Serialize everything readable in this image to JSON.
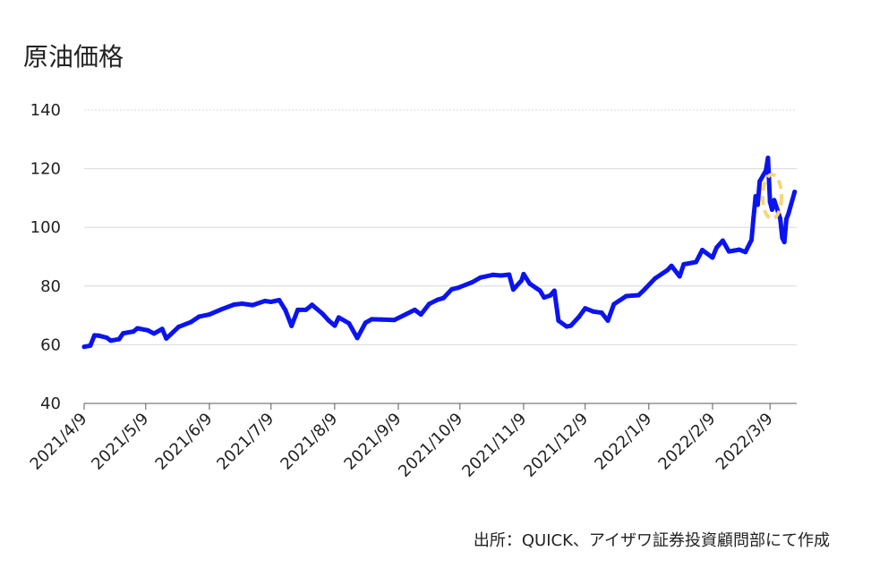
{
  "title": "原油価格",
  "source": "出所：QUICK、アイザワ証券投資顧問部にて作成",
  "colors": {
    "series": "#0a14f0",
    "highlight": "#f7d57a",
    "grid": "#d9d9d9",
    "axis": "#595959"
  },
  "chart_data": {
    "type": "line",
    "title": "原油価格",
    "xlabel": "",
    "ylabel": "",
    "ylim": [
      40,
      140
    ],
    "yticks": [
      40,
      60,
      80,
      100,
      120,
      140
    ],
    "xticks": [
      "2021/4/9",
      "2021/5/9",
      "2021/6/9",
      "2021/7/9",
      "2021/8/9",
      "2021/9/9",
      "2021/10/9",
      "2021/11/9",
      "2021/12/9",
      "2022/1/9",
      "2022/2/9",
      "2022/3/9"
    ],
    "grid": "horizontal",
    "series": [
      {
        "points": [
          [
            "2021/4/9",
            59.3
          ],
          [
            "2021/4/12",
            59.7
          ],
          [
            "2021/4/14",
            63.2
          ],
          [
            "2021/4/16",
            63.1
          ],
          [
            "2021/4/20",
            62.4
          ],
          [
            "2021/4/22",
            61.4
          ],
          [
            "2021/4/26",
            61.9
          ],
          [
            "2021/4/28",
            63.9
          ],
          [
            "2021/5/3",
            64.5
          ],
          [
            "2021/5/5",
            65.6
          ],
          [
            "2021/5/10",
            64.9
          ],
          [
            "2021/5/13",
            63.8
          ],
          [
            "2021/5/17",
            65.4
          ],
          [
            "2021/5/19",
            62.1
          ],
          [
            "2021/5/25",
            66.1
          ],
          [
            "2021/5/31",
            67.7
          ],
          [
            "2021/6/4",
            69.6
          ],
          [
            "2021/6/9",
            70.3
          ],
          [
            "2021/6/15",
            72.1
          ],
          [
            "2021/6/21",
            73.7
          ],
          [
            "2021/6/25",
            74.0
          ],
          [
            "2021/6/30",
            73.5
          ],
          [
            "2021/7/6",
            74.9
          ],
          [
            "2021/7/9",
            74.6
          ],
          [
            "2021/7/13",
            75.2
          ],
          [
            "2021/7/16",
            71.8
          ],
          [
            "2021/7/19",
            66.4
          ],
          [
            "2021/7/22",
            71.9
          ],
          [
            "2021/7/26",
            71.9
          ],
          [
            "2021/7/29",
            73.6
          ],
          [
            "2021/8/3",
            70.6
          ],
          [
            "2021/8/6",
            68.3
          ],
          [
            "2021/8/9",
            66.5
          ],
          [
            "2021/8/11",
            69.3
          ],
          [
            "2021/8/16",
            67.3
          ],
          [
            "2021/8/20",
            62.3
          ],
          [
            "2021/8/24",
            67.5
          ],
          [
            "2021/8/27",
            68.7
          ],
          [
            "2021/9/1",
            68.6
          ],
          [
            "2021/9/7",
            68.4
          ],
          [
            "2021/9/13",
            70.5
          ],
          [
            "2021/9/17",
            71.9
          ],
          [
            "2021/9/20",
            70.3
          ],
          [
            "2021/9/24",
            73.9
          ],
          [
            "2021/9/28",
            75.3
          ],
          [
            "2021/10/1",
            75.9
          ],
          [
            "2021/10/5",
            78.9
          ],
          [
            "2021/10/8",
            79.4
          ],
          [
            "2021/10/12",
            80.5
          ],
          [
            "2021/10/15",
            81.3
          ],
          [
            "2021/10/19",
            82.9
          ],
          [
            "2021/10/25",
            83.8
          ],
          [
            "2021/10/29",
            83.6
          ],
          [
            "2021/11/2",
            83.9
          ],
          [
            "2021/11/4",
            78.8
          ],
          [
            "2021/11/8",
            81.9
          ],
          [
            "2021/11/9",
            84.1
          ],
          [
            "2021/11/12",
            80.8
          ],
          [
            "2021/11/17",
            78.4
          ],
          [
            "2021/11/19",
            76.1
          ],
          [
            "2021/11/22",
            76.8
          ],
          [
            "2021/11/24",
            78.4
          ],
          [
            "2021/11/26",
            68.2
          ],
          [
            "2021/11/30",
            66.2
          ],
          [
            "2021/12/2",
            66.5
          ],
          [
            "2021/12/6",
            69.5
          ],
          [
            "2021/12/9",
            72.4
          ],
          [
            "2021/12/13",
            71.3
          ],
          [
            "2021/12/17",
            70.9
          ],
          [
            "2021/12/20",
            68.2
          ],
          [
            "2021/12/23",
            73.8
          ],
          [
            "2021/12/29",
            76.6
          ],
          [
            "2022/1/4",
            76.9
          ],
          [
            "2022/1/7",
            78.9
          ],
          [
            "2022/1/12",
            82.6
          ],
          [
            "2022/1/18",
            85.4
          ],
          [
            "2022/1/20",
            86.9
          ],
          [
            "2022/1/24",
            83.3
          ],
          [
            "2022/1/26",
            87.4
          ],
          [
            "2022/2/1",
            88.2
          ],
          [
            "2022/2/4",
            92.3
          ],
          [
            "2022/2/9",
            89.7
          ],
          [
            "2022/2/11",
            93.1
          ],
          [
            "2022/2/14",
            95.5
          ],
          [
            "2022/2/17",
            91.8
          ],
          [
            "2022/2/22",
            92.4
          ],
          [
            "2022/2/25",
            91.6
          ],
          [
            "2022/2/28",
            95.7
          ],
          [
            "2022/3/1",
            103.4
          ],
          [
            "2022/3/2",
            110.6
          ],
          [
            "2022/3/3",
            107.7
          ],
          [
            "2022/3/4",
            115.7
          ],
          [
            "2022/3/7",
            119.4
          ],
          [
            "2022/3/8",
            123.7
          ],
          [
            "2022/3/9",
            108.7
          ],
          [
            "2022/3/10",
            106.0
          ],
          [
            "2022/3/11",
            109.3
          ],
          [
            "2022/3/14",
            103.0
          ],
          [
            "2022/3/15",
            96.4
          ],
          [
            "2022/3/16",
            95.0
          ],
          [
            "2022/3/17",
            102.9
          ],
          [
            "2022/3/18",
            104.7
          ],
          [
            "2022/3/21",
            112.1
          ]
        ]
      }
    ],
    "highlight": {
      "shape": "dashed-ellipse",
      "x": [
        "2022/3/8",
        "2022/3/12"
      ],
      "y": [
        103,
        118
      ]
    }
  }
}
